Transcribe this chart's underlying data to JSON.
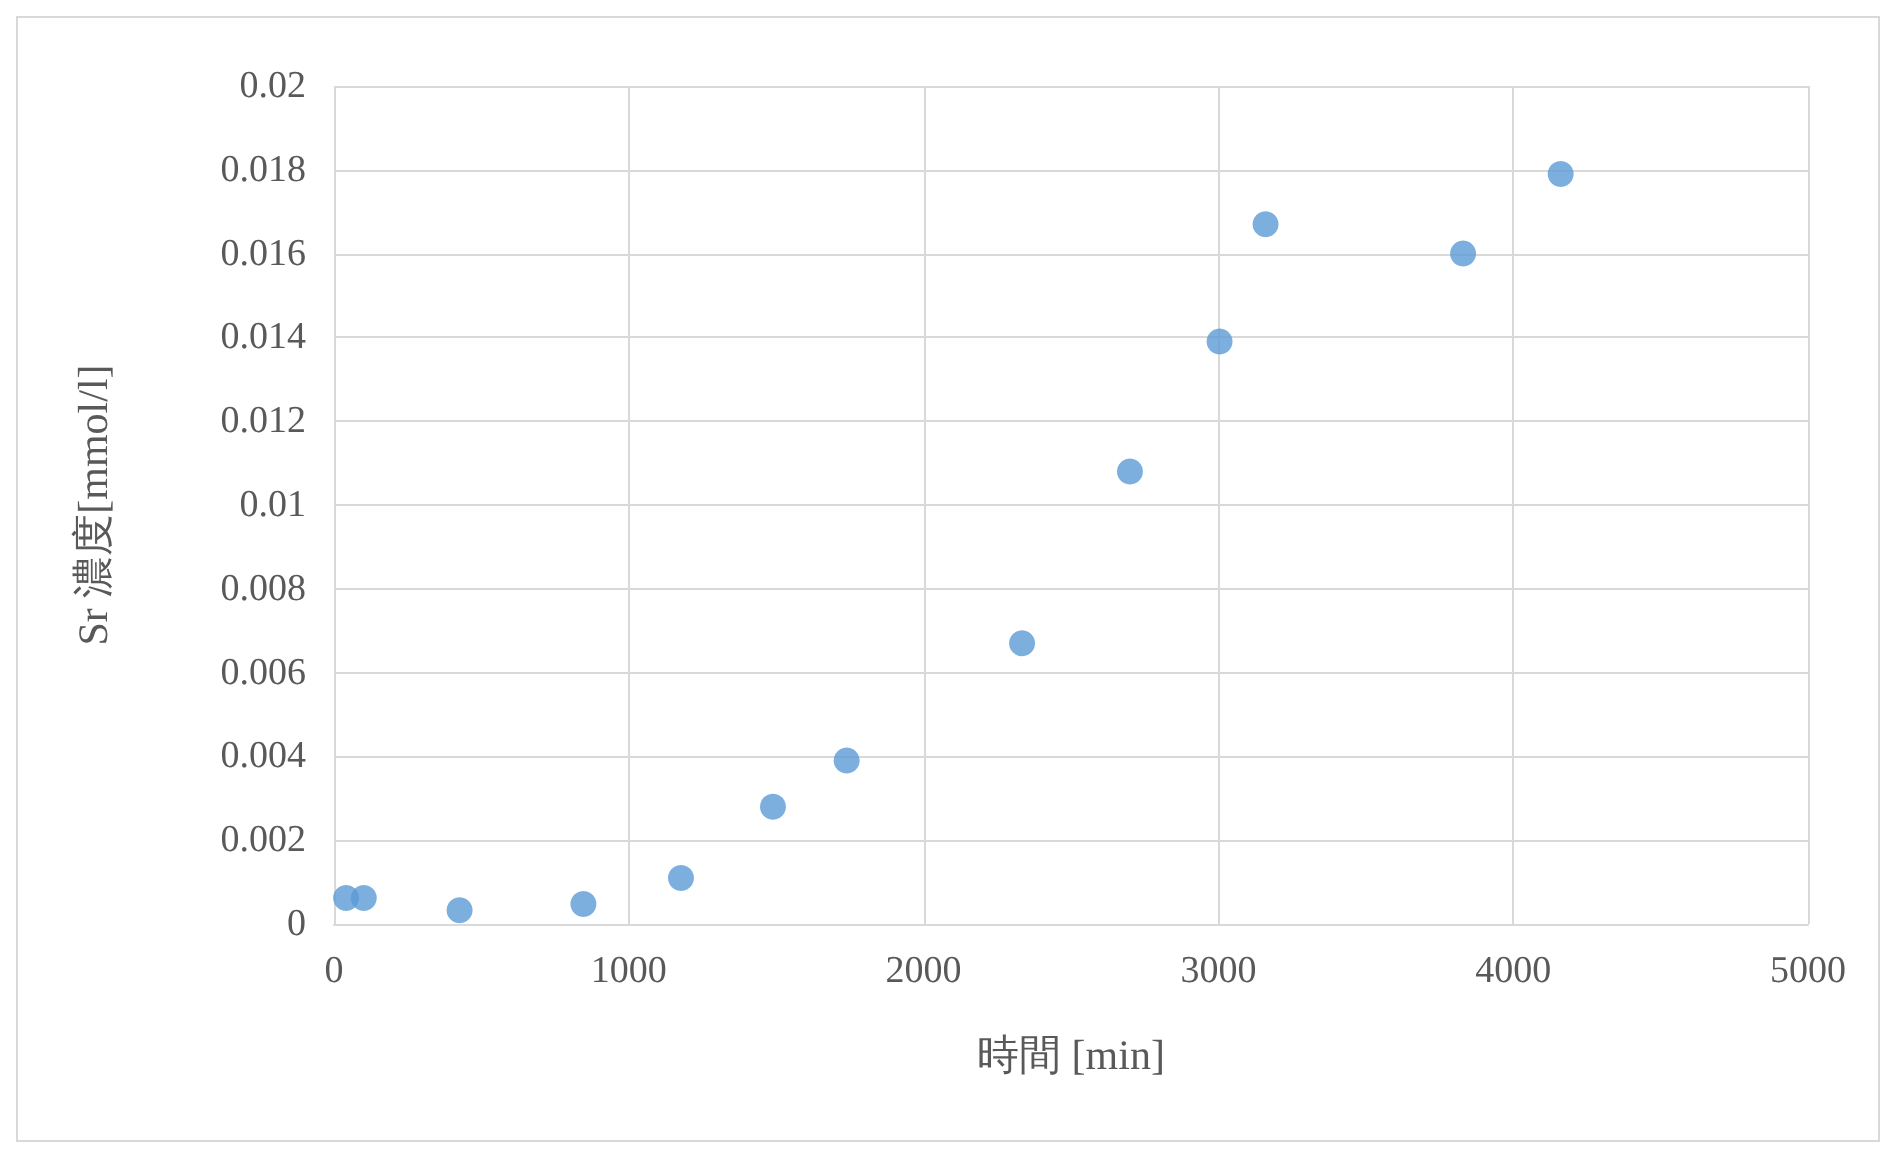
{
  "chart_data": {
    "type": "scatter",
    "xlabel": "時間 [min]",
    "ylabel": "Sr 濃度[mmol/l]",
    "x": [
      41,
      101,
      426,
      846,
      1177,
      1489,
      1739,
      2334,
      2700,
      3004,
      3160,
      3830,
      4161
    ],
    "values": [
      0.00062,
      0.00062,
      0.00033,
      0.00048,
      0.0011,
      0.0028,
      0.0039,
      0.0067,
      0.0108,
      0.0139,
      0.0167,
      0.016,
      0.0179
    ],
    "color": "#5b9bd5",
    "marker": "circle",
    "xlim": [
      0,
      5000
    ],
    "xticks": [
      0,
      1000,
      2000,
      3000,
      4000,
      5000
    ],
    "ylim": [
      0,
      0.02
    ],
    "yticks": [
      0,
      0.002,
      0.004,
      0.006,
      0.008,
      0.01,
      0.012,
      0.014,
      0.016,
      0.018,
      0.02
    ],
    "grid": true
  }
}
